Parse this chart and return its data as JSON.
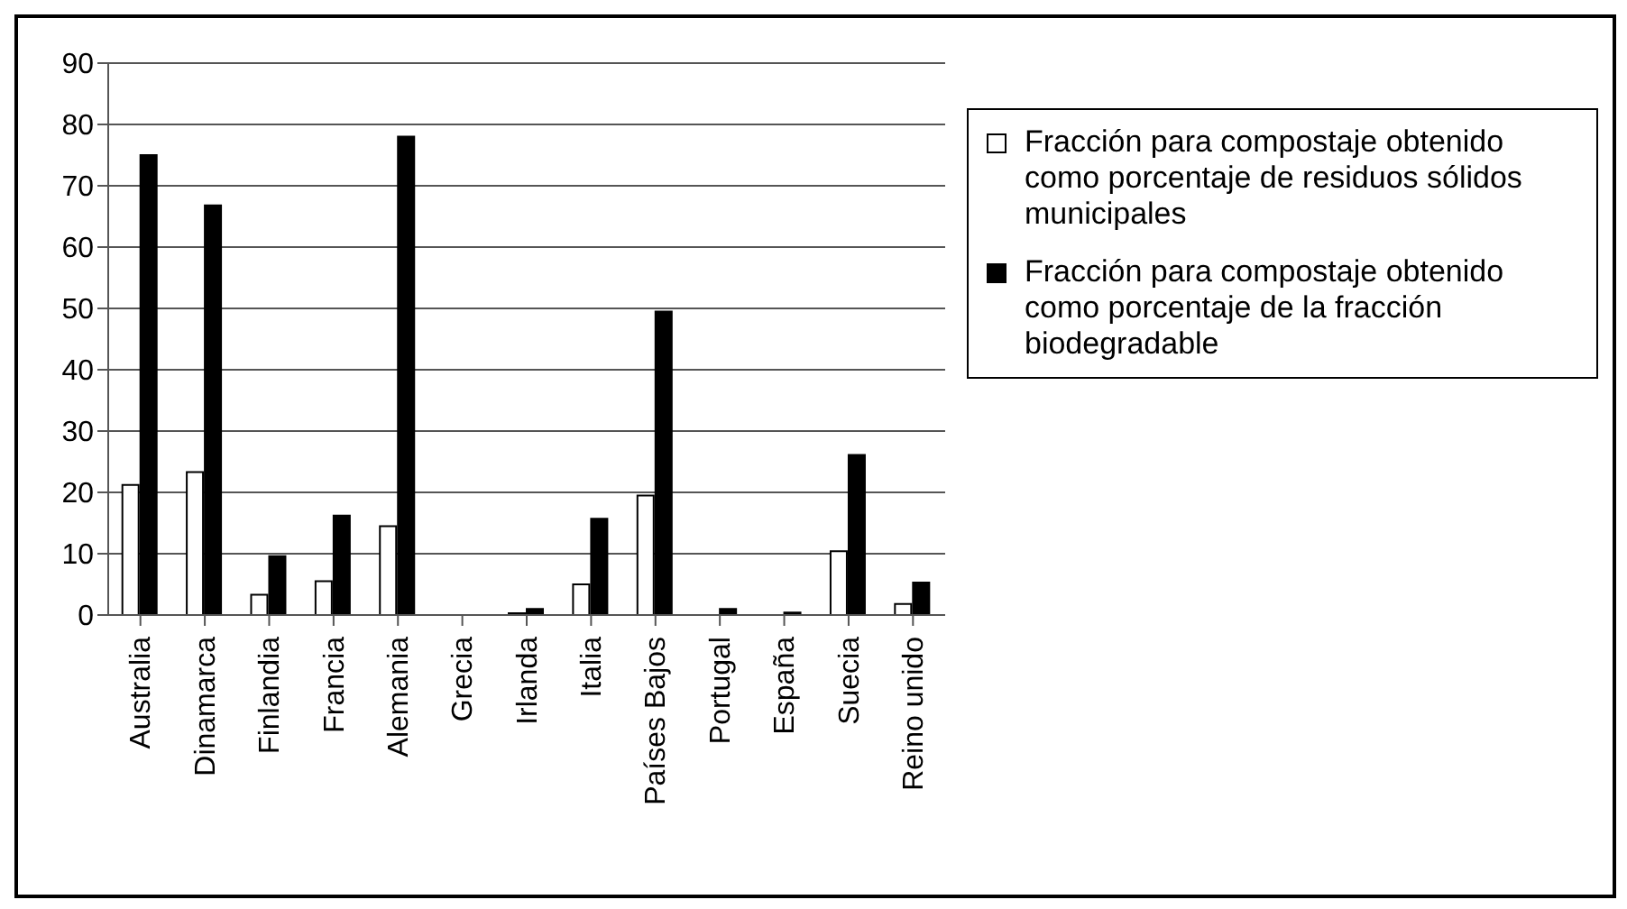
{
  "chart_data": {
    "type": "bar",
    "categories": [
      "Australia",
      "Dinamarca",
      "Finlandia",
      "Francia",
      "Alemania",
      "Grecia",
      "Irlanda",
      "Italia",
      "Países Bajos",
      "Portugal",
      "España",
      "Suecia",
      "Reino unido"
    ],
    "series": [
      {
        "name": "Fracción para compostaje obtenido como porcentaje de residuos sólidos municipales",
        "color": "#ffffff",
        "values": [
          21.2,
          23.3,
          3.3,
          5.5,
          14.5,
          0,
          0.3,
          5,
          19.5,
          null,
          null,
          10.4,
          1.8
        ]
      },
      {
        "name": "Fracción para compostaje obtenido como porcentaje de la fracción biodegradable",
        "color": "#000000",
        "values": [
          75,
          66.8,
          9.6,
          16.2,
          78,
          0,
          1,
          15.7,
          49.5,
          1,
          0.4,
          26.1,
          5.3
        ]
      }
    ],
    "ylim": [
      0,
      90
    ],
    "yticks": [
      0,
      10,
      20,
      30,
      40,
      50,
      60,
      70,
      80,
      90
    ],
    "grid": "y",
    "legend": "right"
  }
}
